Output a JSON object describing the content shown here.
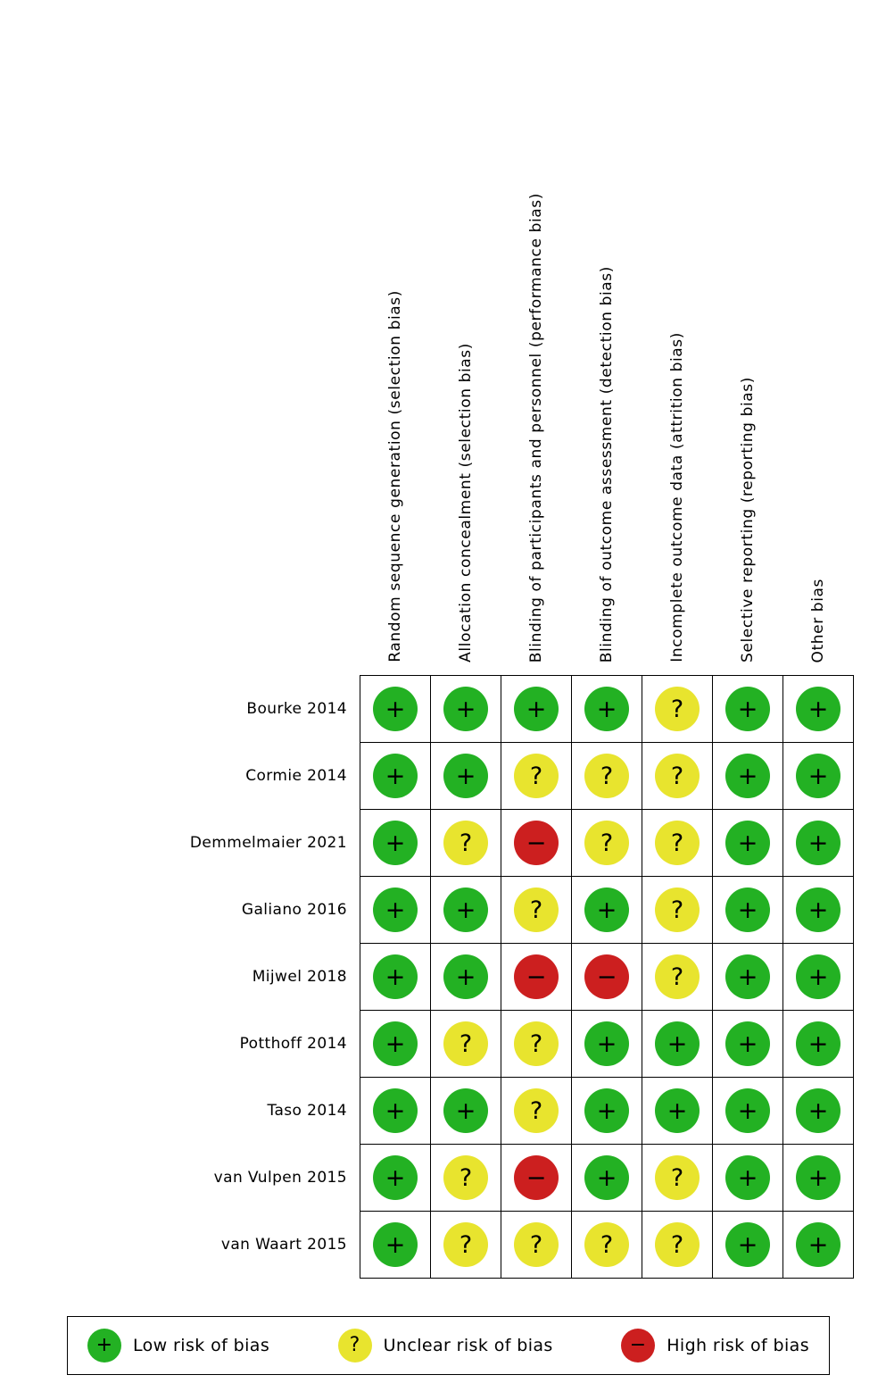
{
  "chart_data": {
    "type": "heatmap",
    "description": "Risk of bias summary (traffic-light plot): review authors' judgements about each risk of bias item for each included study",
    "columns": [
      "Random sequence generation (selection bias)",
      "Allocation concealment (selection bias)",
      "Blinding of participants and personnel (performance bias)",
      "Blinding of outcome assessment (detection bias)",
      "Incomplete outcome data (attrition bias)",
      "Selective reporting (reporting bias)",
      "Other bias"
    ],
    "rows": [
      {
        "study": "Bourke 2014",
        "ratings": [
          "low",
          "low",
          "low",
          "low",
          "unclear",
          "low",
          "low"
        ]
      },
      {
        "study": "Cormie 2014",
        "ratings": [
          "low",
          "low",
          "unclear",
          "unclear",
          "unclear",
          "low",
          "low"
        ]
      },
      {
        "study": "Demmelmaier 2021",
        "ratings": [
          "low",
          "unclear",
          "high",
          "unclear",
          "unclear",
          "low",
          "low"
        ]
      },
      {
        "study": "Galiano 2016",
        "ratings": [
          "low",
          "low",
          "unclear",
          "low",
          "unclear",
          "low",
          "low"
        ]
      },
      {
        "study": "Mijwel 2018",
        "ratings": [
          "low",
          "low",
          "high",
          "high",
          "unclear",
          "low",
          "low"
        ]
      },
      {
        "study": "Potthoff 2014",
        "ratings": [
          "low",
          "unclear",
          "unclear",
          "low",
          "low",
          "low",
          "low"
        ]
      },
      {
        "study": "Taso 2014",
        "ratings": [
          "low",
          "low",
          "unclear",
          "low",
          "low",
          "low",
          "low"
        ]
      },
      {
        "study": "van Vulpen 2015",
        "ratings": [
          "low",
          "unclear",
          "high",
          "low",
          "unclear",
          "low",
          "low"
        ]
      },
      {
        "study": "van Waart 2015",
        "ratings": [
          "low",
          "unclear",
          "unclear",
          "unclear",
          "unclear",
          "low",
          "low"
        ]
      }
    ],
    "ratings": {
      "low": {
        "symbol": "+",
        "color": "#23B123",
        "label": "Low risk of bias"
      },
      "unclear": {
        "symbol": "?",
        "color": "#E8E42E",
        "label": "Unclear risk of bias"
      },
      "high": {
        "symbol": "−",
        "color": "#CC1F1F",
        "label": "High risk of bias"
      }
    },
    "legend_order": [
      "low",
      "unclear",
      "high"
    ],
    "grid": true,
    "legend_position": "bottom"
  }
}
